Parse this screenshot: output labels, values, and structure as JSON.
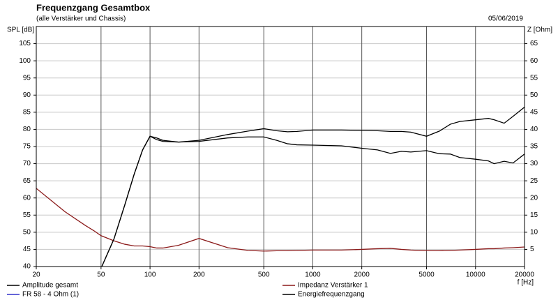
{
  "chart_data": {
    "type": "line",
    "title": "Frequenzgang Gesamtbox",
    "subtitle": "(alle Verstärker und Chassis)",
    "date": "05/06/2019",
    "y_label": "SPL [dB]",
    "y2_label": "Z [Ohm]",
    "x_label": "f [Hz]",
    "x_scale": "log",
    "grid": true,
    "x": [
      20,
      30,
      40,
      45,
      50,
      60,
      70,
      80,
      90,
      100,
      110,
      120,
      150,
      200,
      300,
      400,
      500,
      600,
      700,
      800,
      1000,
      1500,
      2000,
      2500,
      3000,
      3500,
      4000,
      5000,
      6000,
      7000,
      8000,
      10000,
      12000,
      13000,
      15000,
      17000,
      20000
    ],
    "xlim": [
      20,
      20000
    ],
    "xticks": [
      20,
      50,
      100,
      200,
      500,
      1000,
      2000,
      5000,
      10000,
      20000
    ],
    "ylim": [
      40,
      110
    ],
    "yticks": [
      40,
      45,
      50,
      55,
      60,
      65,
      70,
      75,
      80,
      85,
      90,
      95,
      100,
      105
    ],
    "y2lim": [
      0,
      70
    ],
    "y2ticks": [
      5,
      10,
      15,
      20,
      25,
      30,
      35,
      40,
      45,
      50,
      55,
      60,
      65
    ],
    "series": [
      {
        "name": "Amplitude gesamt",
        "color": "#000000",
        "values": [
          null,
          null,
          null,
          null,
          39.5,
          48,
          58,
          67,
          74,
          78,
          77.5,
          76.8,
          76.3,
          76.8,
          78.5,
          79.5,
          80.2,
          79.6,
          79.3,
          79.4,
          79.8,
          79.8,
          79.7,
          79.6,
          79.4,
          79.4,
          79.2,
          78,
          79.5,
          81.5,
          82.3,
          82.8,
          83.2,
          82.8,
          81.8,
          83.8,
          86.5
        ]
      },
      {
        "name": "Impedanz Verstärker 1",
        "color": "#8b1a1a",
        "axis": "y2",
        "values": [
          22.8,
          16,
          12,
          10.5,
          9,
          7.5,
          6.5,
          6,
          6,
          5.8,
          5.4,
          5.4,
          6.2,
          8.2,
          5.5,
          4.7,
          4.5,
          4.6,
          4.6,
          4.7,
          4.8,
          4.8,
          5,
          5.2,
          5.3,
          5,
          4.8,
          4.6,
          4.6,
          4.7,
          4.8,
          5,
          5.2,
          5.2,
          5.4,
          5.5,
          5.7
        ]
      },
      {
        "name": "FR 58 - 4 Ohm (1)",
        "color": "#3333cc",
        "values": [
          null,
          null,
          null,
          null,
          null,
          null,
          null,
          null,
          null,
          null,
          null,
          null,
          null,
          null,
          null,
          null,
          null,
          null,
          null,
          null,
          null,
          null,
          null,
          null,
          null,
          null,
          null,
          null,
          null,
          null,
          null,
          null,
          null,
          null,
          null,
          null,
          null
        ]
      },
      {
        "name": "Energiefrequenzgang",
        "color": "#000000",
        "values": [
          null,
          null,
          null,
          null,
          39.5,
          48,
          58,
          67,
          74,
          78,
          77,
          76.5,
          76.3,
          76.5,
          77.5,
          77.8,
          77.8,
          76.8,
          75.8,
          75.5,
          75.4,
          75.2,
          74.5,
          74,
          73,
          73.6,
          73.4,
          73.8,
          72.9,
          72.8,
          71.8,
          71.3,
          70.8,
          70,
          70.7,
          70.2,
          72.8
        ]
      }
    ]
  }
}
